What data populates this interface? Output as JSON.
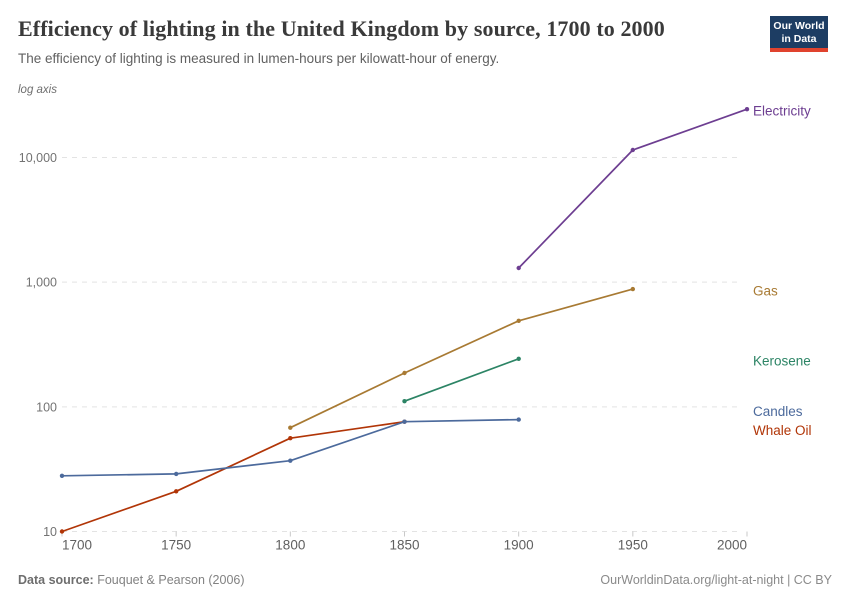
{
  "logo": {
    "line1": "Our World",
    "line2": "in Data",
    "bg_color": "#1d3d63",
    "bar_color": "#e0432e"
  },
  "chart_data": {
    "type": "line",
    "title": "Efficiency of lighting in the United Kingdom by source, 1700 to 2000",
    "subtitle": "The efficiency of lighting is measured in lumen-hours per kilowatt-hour of energy.",
    "scale_note": "log axis",
    "y_scale": "log",
    "xlim": [
      1700,
      2000
    ],
    "ylim": [
      10,
      29000
    ],
    "grid": true,
    "legend_position": "right-end-labels",
    "x_ticks": [
      1700,
      1750,
      1800,
      1850,
      1900,
      1950,
      2000
    ],
    "y_ticks": [
      10,
      100,
      1000,
      10000
    ],
    "y_tick_labels": [
      "10",
      "100",
      "1,000",
      "10,000"
    ],
    "series": [
      {
        "name": "Electricity",
        "color": "#6d3e91",
        "label_dy": 2,
        "points": [
          [
            1900,
            1300
          ],
          [
            1950,
            11500
          ],
          [
            2000,
            24400
          ]
        ]
      },
      {
        "name": "Gas",
        "color": "#a87a33",
        "label_dy": 2,
        "points": [
          [
            1800,
            68
          ],
          [
            1850,
            187
          ],
          [
            1900,
            490
          ],
          [
            1950,
            880
          ]
        ]
      },
      {
        "name": "Kerosene",
        "color": "#2c8465",
        "label_dy": 2,
        "points": [
          [
            1850,
            111
          ],
          [
            1900,
            243
          ]
        ]
      },
      {
        "name": "Candles",
        "color": "#4c6a9c",
        "label_dy": -8,
        "points": [
          [
            1700,
            28
          ],
          [
            1750,
            29
          ],
          [
            1800,
            37
          ],
          [
            1850,
            76
          ],
          [
            1900,
            79
          ]
        ]
      },
      {
        "name": "Whale Oil",
        "color": "#b13507",
        "label_dy": 9,
        "points": [
          [
            1700,
            10
          ],
          [
            1750,
            21
          ],
          [
            1800,
            56
          ],
          [
            1850,
            76
          ]
        ]
      }
    ]
  },
  "footer": {
    "source_label": "Data source:",
    "source_value": " Fouquet & Pearson (2006)",
    "credit": "OurWorldinData.org/light-at-night | CC BY"
  }
}
